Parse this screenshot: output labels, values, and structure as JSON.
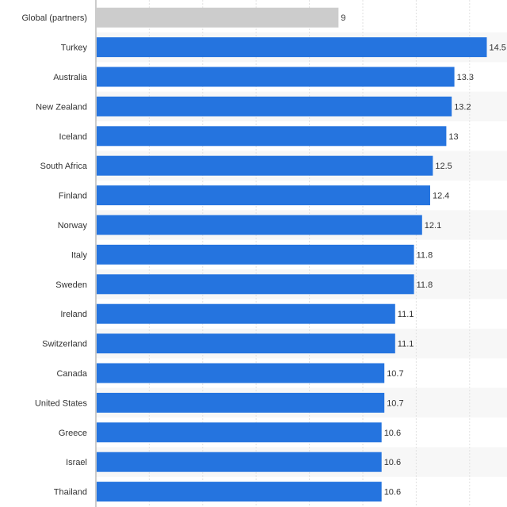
{
  "chart_data": {
    "type": "bar",
    "orientation": "horizontal",
    "categories": [
      "Global (partners)",
      "Turkey",
      "Australia",
      "New Zealand",
      "Iceland",
      "South Africa",
      "Finland",
      "Norway",
      "Italy",
      "Sweden",
      "Ireland",
      "Switzerland",
      "Canada",
      "United States",
      "Greece",
      "Israel",
      "Thailand"
    ],
    "values": [
      9,
      14.5,
      13.3,
      13.2,
      13,
      12.5,
      12.4,
      12.1,
      11.8,
      11.8,
      11.1,
      11.1,
      10.7,
      10.7,
      10.6,
      10.6,
      10.6
    ],
    "value_labels": [
      "9",
      "14.5",
      "13.3",
      "13.2",
      "13",
      "12.5",
      "12.4",
      "12.1",
      "11.8",
      "11.8",
      "11.1",
      "11.1",
      "10.7",
      "10.7",
      "10.6",
      "10.6",
      "10.6"
    ],
    "highlight_color": "#cccccc",
    "bar_color": "#2574df",
    "highlight_index": 0,
    "xlim": [
      0,
      15.25
    ],
    "grid": true,
    "title": "",
    "xlabel": "",
    "ylabel": ""
  }
}
